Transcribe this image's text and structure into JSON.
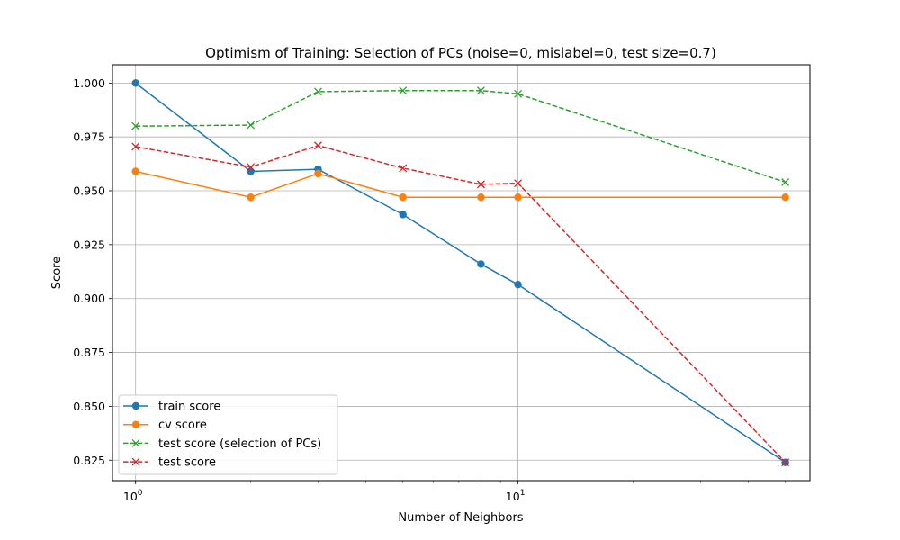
{
  "chart_data": {
    "type": "line",
    "title": "Optimism of Training: Selection of PCs (noise=0, mislabel=0, test size=0.7)",
    "xlabel": "Number of Neighbors",
    "ylabel": "Score",
    "xscale": "log",
    "xlim": [
      0.87,
      58
    ],
    "ylim": [
      0.8155,
      1.0085
    ],
    "x": [
      1,
      2,
      3,
      5,
      8,
      10,
      50
    ],
    "xticks": [
      {
        "value": 1,
        "base": "10",
        "exp": "0"
      },
      {
        "value": 10,
        "base": "10",
        "exp": "1"
      }
    ],
    "yticks": [
      {
        "value": 0.825,
        "label": "0.825"
      },
      {
        "value": 0.85,
        "label": "0.850"
      },
      {
        "value": 0.875,
        "label": "0.875"
      },
      {
        "value": 0.9,
        "label": "0.900"
      },
      {
        "value": 0.925,
        "label": "0.925"
      },
      {
        "value": 0.95,
        "label": "0.950"
      },
      {
        "value": 0.975,
        "label": "0.975"
      },
      {
        "value": 1.0,
        "label": "1.000"
      }
    ],
    "grid": true,
    "legend_position": "lower-left",
    "series": [
      {
        "name": "train score",
        "color": "#1f77b4",
        "marker": "circle",
        "dash": "solid",
        "values": [
          1.0,
          0.959,
          0.96,
          0.939,
          0.916,
          0.9065,
          0.824
        ]
      },
      {
        "name": "cv score",
        "color": "#ff7f0e",
        "marker": "circle",
        "dash": "solid",
        "values": [
          0.959,
          0.947,
          0.958,
          0.947,
          0.947,
          0.947,
          0.947
        ]
      },
      {
        "name": "test score (selection of PCs)",
        "color": "#2ca02c",
        "marker": "x",
        "dash": "dashed",
        "values": [
          0.98,
          0.9805,
          0.996,
          0.9965,
          0.9965,
          0.995,
          0.954
        ]
      },
      {
        "name": "test score",
        "color": "#d62728",
        "marker": "x",
        "dash": "dashed",
        "values": [
          0.9705,
          0.961,
          0.971,
          0.9605,
          0.953,
          0.9535,
          0.824
        ]
      }
    ]
  }
}
